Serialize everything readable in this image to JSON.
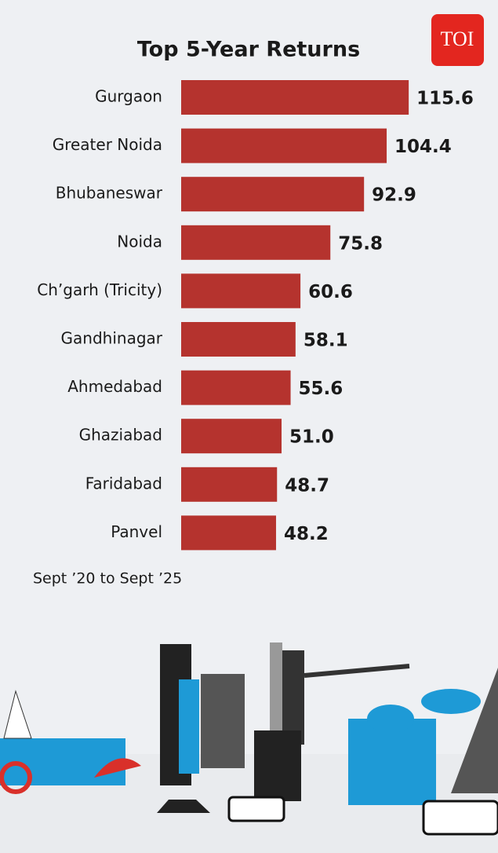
{
  "chart_data": {
    "type": "bar",
    "orientation": "horizontal",
    "title": "Top 5-Year Returns",
    "logo": "TOI",
    "note": "Sept ’20 to Sept ’25",
    "categories": [
      "Gurgaon",
      "Greater Noida",
      "Bhubaneswar",
      "Noida",
      "Ch’garh (Tricity)",
      "Gandhinagar",
      "Ahmedabad",
      "Ghaziabad",
      "Faridabad",
      "Panvel"
    ],
    "values": [
      115.6,
      104.4,
      92.9,
      75.8,
      60.6,
      58.1,
      55.6,
      51.0,
      48.7,
      48.2
    ],
    "value_labels": [
      "115.6",
      "104.4",
      "92.9",
      "75.8",
      "60.6",
      "58.1",
      "55.6",
      "51.0",
      "48.7",
      "48.2"
    ],
    "color": "#b5332e"
  }
}
